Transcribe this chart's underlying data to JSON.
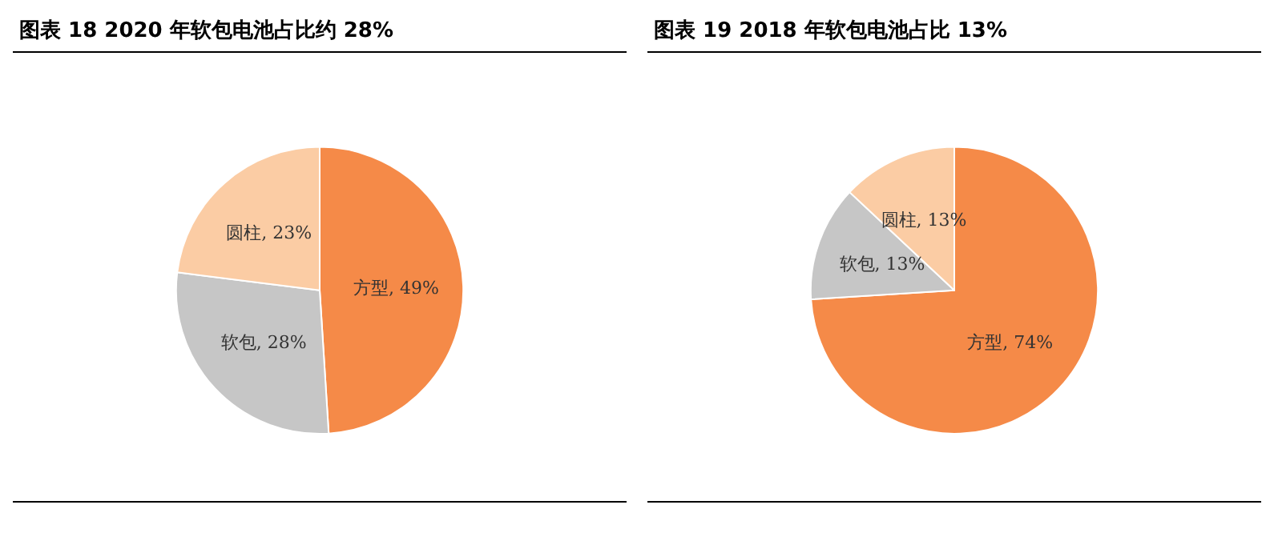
{
  "chart_data": [
    {
      "type": "pie",
      "title": "图表 18   2020 年软包电池占比约 28%",
      "categories": [
        "方型",
        "软包",
        "圆柱"
      ],
      "values": [
        49,
        28,
        23
      ],
      "value_labels": [
        "49%",
        "28%",
        "23%"
      ],
      "colors": [
        "#f58a48",
        "#c6c6c6",
        "#fbcca4"
      ]
    },
    {
      "type": "pie",
      "title": "图表 19   2018 年软包电池占比 13%",
      "categories": [
        "方型",
        "软包",
        "圆柱"
      ],
      "values": [
        74,
        13,
        13
      ],
      "value_labels": [
        "74%",
        "13%",
        "13%"
      ],
      "colors": [
        "#f58a48",
        "#c6c6c6",
        "#fbcca4"
      ]
    }
  ]
}
